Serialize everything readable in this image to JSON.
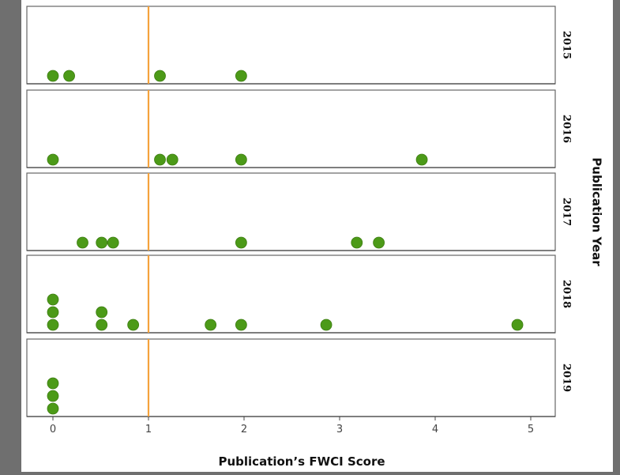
{
  "chart_data": {
    "type": "scatter",
    "subtype": "faceted dot plot",
    "xlabel": "Publication’s FWCI Score",
    "facet_label": "Publication Year",
    "xlim": [
      -0.25,
      5.25
    ],
    "xticks": [
      0,
      1,
      2,
      3,
      4,
      5
    ],
    "reference_line_x": 1,
    "colors": {
      "points": "#4c9a18",
      "reference_line": "#f5a23c"
    },
    "facets": [
      {
        "label": "2015",
        "points": [
          0,
          0.17,
          1.12,
          1.97
        ]
      },
      {
        "label": "2016",
        "points": [
          0,
          1.12,
          1.25,
          1.97,
          3.86
        ]
      },
      {
        "label": "2017",
        "points": [
          0.31,
          0.51,
          0.63,
          1.97,
          3.18,
          3.41
        ]
      },
      {
        "label": "2018",
        "points": [
          0,
          0,
          0,
          0.51,
          0.51,
          0.84,
          1.65,
          1.97,
          2.86,
          4.86
        ]
      },
      {
        "label": "2019",
        "points": [
          0,
          0,
          0
        ]
      }
    ]
  }
}
